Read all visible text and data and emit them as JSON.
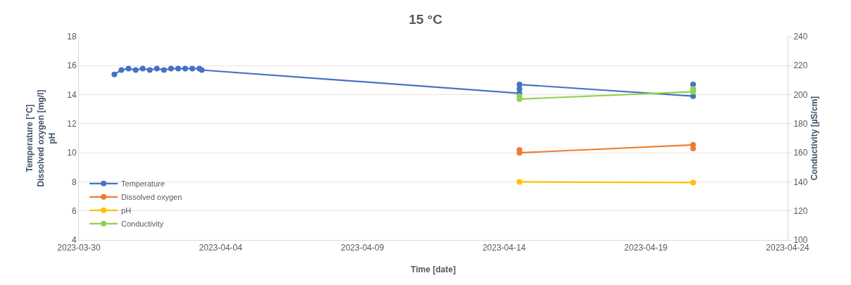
{
  "chart_data": {
    "type": "line",
    "title": "15 °C",
    "xlabel": "Time [date]",
    "ylabel": "Temperature [°C]\nDissolved oxygen [mg/l]\npH",
    "y2label": "Conductivity [µS/cm]",
    "xlim": [
      "2023-03-30",
      "2023-04-24"
    ],
    "xticks": [
      "2023-03-30",
      "2023-04-04",
      "2023-04-09",
      "2023-04-14",
      "2023-04-19",
      "2023-04-24"
    ],
    "ylim": [
      4,
      18
    ],
    "yticks": [
      4,
      6,
      8,
      10,
      12,
      14,
      16,
      18
    ],
    "y2lim": [
      100,
      240
    ],
    "y2ticks": [
      100,
      120,
      140,
      160,
      180,
      200,
      220,
      240
    ],
    "grid": "y",
    "legend": "bottom left",
    "marker": "circle",
    "line_style": "solid",
    "series": [
      {
        "name": "Temperature",
        "color": "#4472c4",
        "x": [
          "2023-03-31T06:00",
          "2023-03-31T12:00",
          "2023-03-31T18:00",
          "2023-04-01T00:00",
          "2023-04-01T06:00",
          "2023-04-01T12:00",
          "2023-04-01T18:00",
          "2023-04-02T00:00",
          "2023-04-02T06:00",
          "2023-04-02T12:00",
          "2023-04-02T18:00",
          "2023-04-03T00:00",
          "2023-04-03T06:00",
          "2023-04-03T08:00",
          "2023-04-14T13:00",
          "2023-04-14T13:00",
          "2023-04-14T13:00",
          "2023-04-20T16:00",
          "2023-04-20T16:00",
          "2023-04-20T16:00"
        ],
        "values": [
          15.4,
          15.7,
          15.8,
          15.7,
          15.8,
          15.7,
          15.8,
          15.7,
          15.8,
          15.8,
          15.8,
          15.8,
          15.8,
          15.7,
          14.1,
          14.4,
          14.7,
          13.9,
          14.3,
          14.7
        ]
      },
      {
        "name": "Dissolved oxygen",
        "color": "#ed7d31",
        "x": [
          "2023-04-14T13:00",
          "2023-04-14T13:00",
          "2023-04-20T16:00",
          "2023-04-20T16:00"
        ],
        "values": [
          10.2,
          10.0,
          10.55,
          10.3
        ]
      },
      {
        "name": "pH",
        "color": "#ffc000",
        "x": [
          "2023-04-14T13:00",
          "2023-04-20T16:00"
        ],
        "values": [
          8.0,
          7.95
        ]
      },
      {
        "name": "Conductivity",
        "color": "#92d050",
        "axis": "y2",
        "x": [
          "2023-04-14T13:00",
          "2023-04-14T13:00",
          "2023-04-20T16:00",
          "2023-04-20T16:00"
        ],
        "values": [
          199,
          197,
          202,
          204
        ]
      }
    ]
  }
}
